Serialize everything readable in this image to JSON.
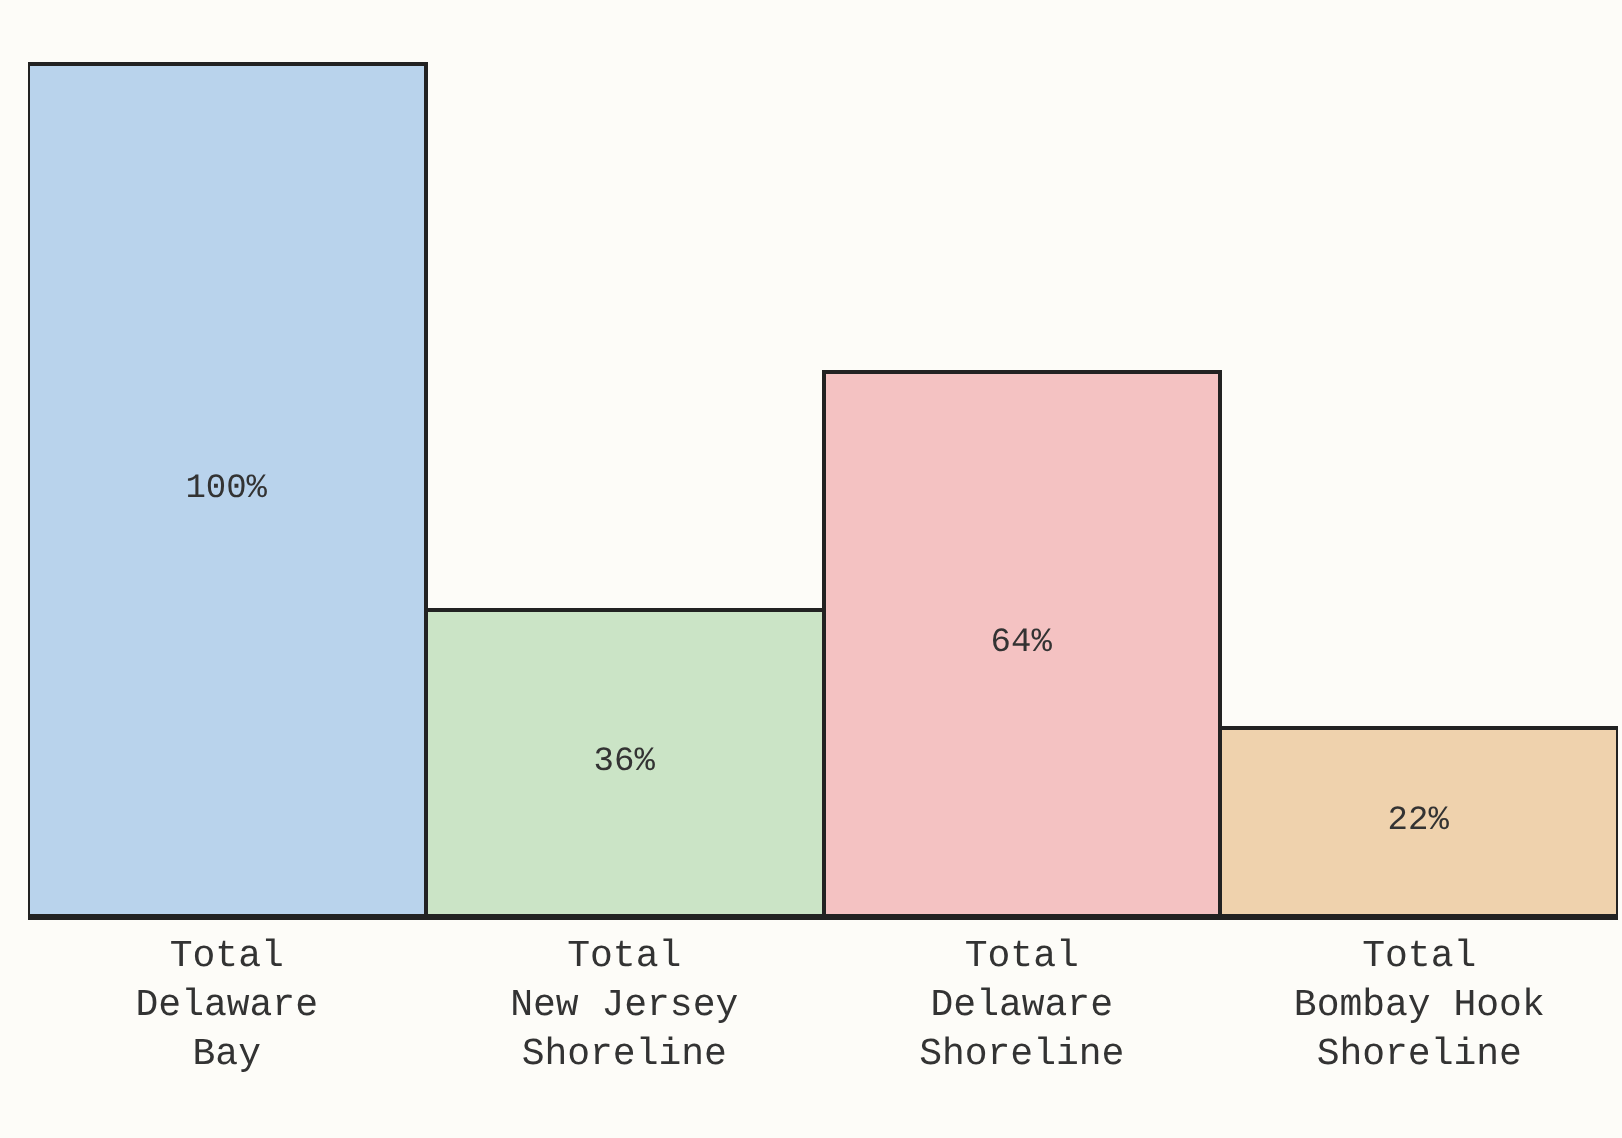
{
  "chart_data": {
    "type": "bar",
    "categories": [
      "Total\nDelaware\nBay",
      "Total\nNew Jersey\nShoreline",
      "Total\nDelaware\nShoreline",
      "Total\nBombay Hook\nShoreline"
    ],
    "values": [
      100,
      36,
      64,
      22
    ],
    "value_labels": [
      "100%",
      "36%",
      "64%",
      "22%"
    ],
    "colors": [
      "#b9d3ec",
      "#cbe4c6",
      "#f4c2c2",
      "#efd2ad"
    ],
    "grid": false,
    "legend": false
  }
}
